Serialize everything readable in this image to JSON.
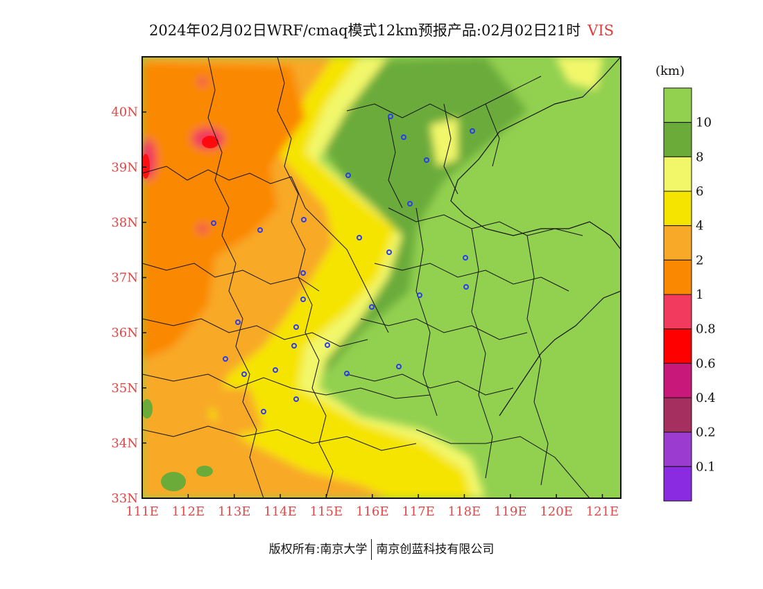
{
  "title": {
    "main": "2024年02月02日WRF/cmaq模式12km预报产品:02月02日21时",
    "variable": "VIS"
  },
  "map": {
    "lat_ticks": [
      "40N",
      "39N",
      "38N",
      "37N",
      "36N",
      "35N",
      "34N",
      "33N"
    ],
    "lon_ticks": [
      "111E",
      "112E",
      "113E",
      "114E",
      "115E",
      "116E",
      "117E",
      "118E",
      "119E",
      "120E",
      "121E"
    ],
    "extent": {
      "lon": [
        111,
        121.4
      ],
      "lat": [
        33,
        41
      ]
    }
  },
  "colorbar": {
    "unit": "(km)",
    "labels": [
      "10",
      "8",
      "6",
      "4",
      "2",
      "1",
      "0.8",
      "0.6",
      "0.4",
      "0.2",
      "0.1"
    ],
    "colors": [
      "#92d050",
      "#6aab3a",
      "#f2f76a",
      "#f5e400",
      "#f8a928",
      "#fa8800",
      "#f23a5f",
      "#ff0000",
      "#c8187a",
      "#a53060",
      "#9b3bd0",
      "#8a2be2"
    ]
  },
  "footer": {
    "left": "版权所有:南京大学",
    "right": "南京创蓝科技有限公司"
  }
}
